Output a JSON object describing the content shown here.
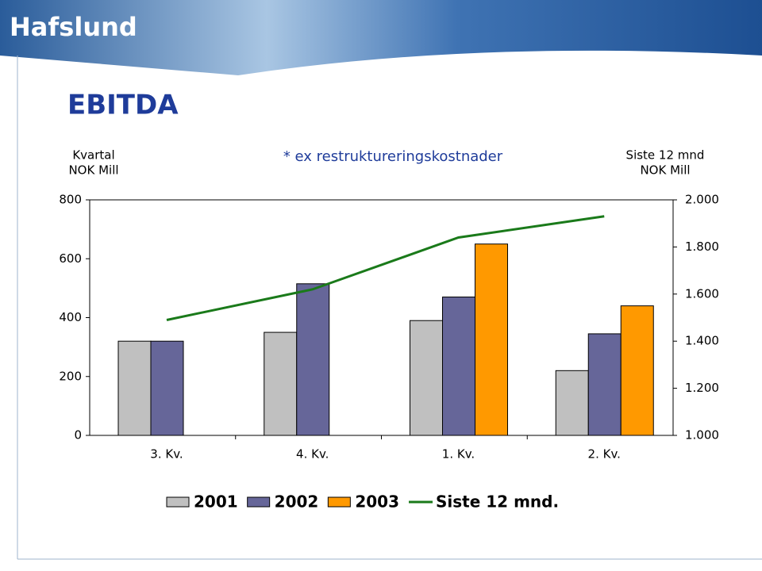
{
  "header": {
    "logo": "Hafslund"
  },
  "chart_data": {
    "type": "bar",
    "title": "EBITDA",
    "subtitle": "* ex restruktureringskostnader",
    "y_label": [
      "Kvartal",
      "NOK Mill"
    ],
    "y2_label": [
      "Siste 12 mnd",
      "NOK Mill"
    ],
    "categories": [
      "3. Kv.",
      "4. Kv.",
      "1. Kv.",
      "2. Kv."
    ],
    "series": [
      {
        "name": "2001",
        "color": "#c0c0c0",
        "values": [
          320,
          350,
          390,
          220
        ]
      },
      {
        "name": "2002",
        "color": "#666699",
        "values": [
          320,
          515,
          470,
          345
        ]
      },
      {
        "name": "2003",
        "color": "#ff9900",
        "values": [
          null,
          null,
          650,
          440
        ]
      },
      {
        "name": "Siste 12 mnd.",
        "color": "#1a7a1a",
        "type": "line",
        "axis": "y2",
        "values": [
          1490,
          1620,
          1840,
          1930
        ]
      }
    ],
    "ylim": [
      0,
      800
    ],
    "yticks": [
      0,
      200,
      400,
      600,
      800
    ],
    "y2lim": [
      1000,
      2000
    ],
    "y2ticks": [
      {
        "value": 1000,
        "label": "1.000"
      },
      {
        "value": 1200,
        "label": "1.200"
      },
      {
        "value": 1400,
        "label": "1.400"
      },
      {
        "value": 1600,
        "label": "1.600"
      },
      {
        "value": 1800,
        "label": "1.800"
      },
      {
        "value": 2000,
        "label": "2.000"
      }
    ]
  }
}
